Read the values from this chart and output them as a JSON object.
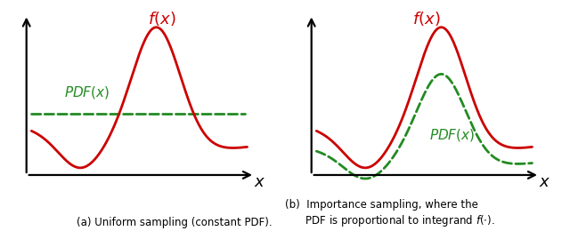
{
  "curve_color": "#cc0000",
  "pdf_flat_color": "#228B22",
  "pdf_shape_color": "#228B22",
  "curve_linewidth": 2.0,
  "pdf_linewidth": 2.0,
  "caption_a": "(a) Uniform sampling (constant PDF).",
  "caption_b": "(b)  Importance sampling, where the\n      PDF is proportional to integrand $f(\\cdot)$.",
  "fx_label": "$f(x)$",
  "pdf_label": "$PDF(x)$",
  "x_label": "$x$",
  "label_color_fx": "#cc0000",
  "label_color_pdf": "#228B22",
  "background": "#ffffff"
}
